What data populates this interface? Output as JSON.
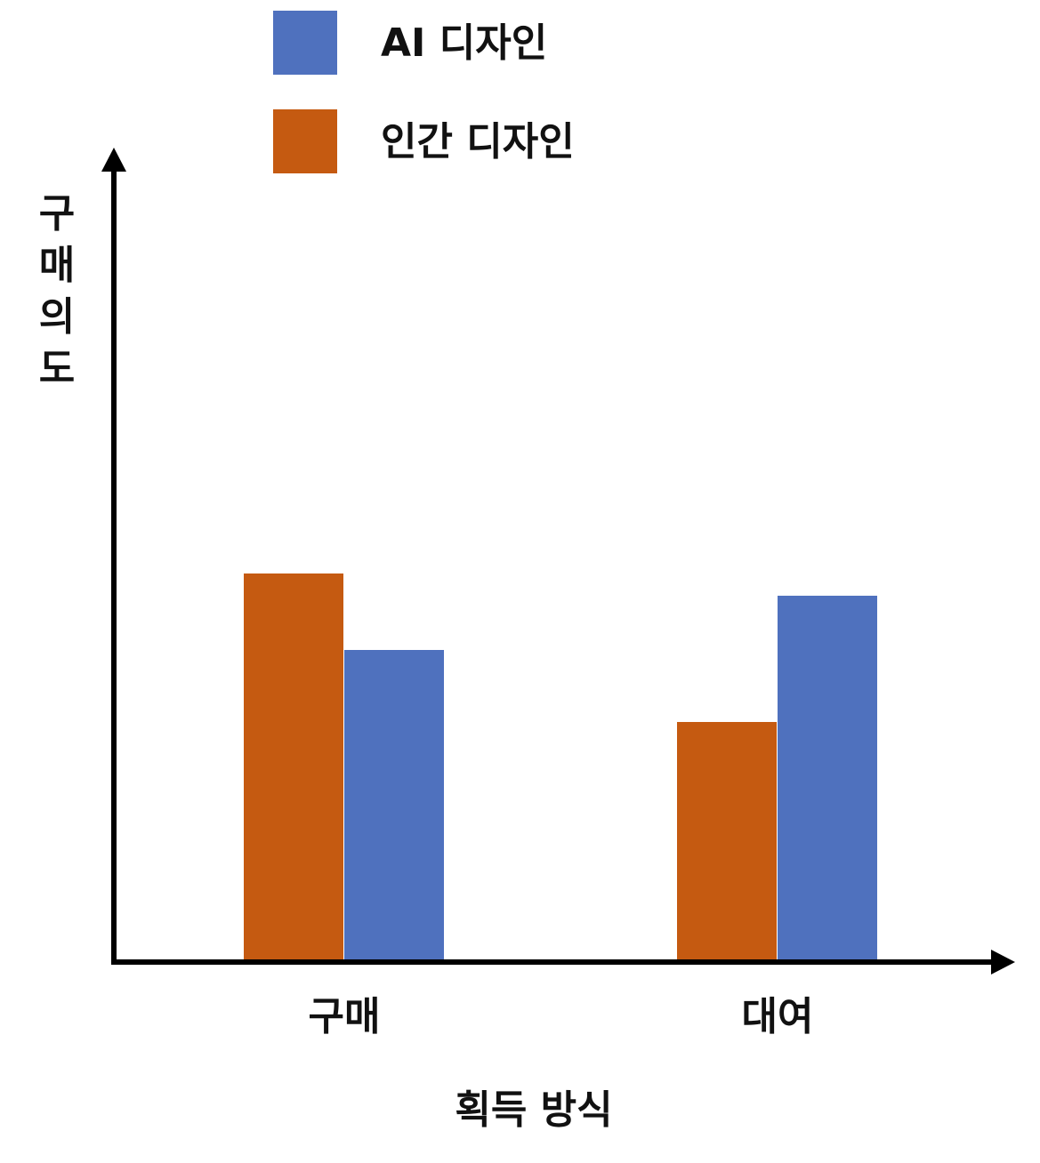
{
  "chart_data": {
    "type": "bar",
    "title": "",
    "xlabel": "획득 방식",
    "ylabel": "구매의도",
    "categories": [
      "구매",
      "대여"
    ],
    "series": [
      {
        "name": "인간 디자인",
        "color": "#C55A11",
        "values": [
          435,
          268
        ]
      },
      {
        "name": "AI 디자인",
        "color": "#4F71BE",
        "values": [
          349,
          410
        ]
      }
    ],
    "ylim": [
      0,
      900
    ],
    "grid": false,
    "legend_position": "top",
    "legend_order": [
      "AI 디자인",
      "인간 디자인"
    ],
    "y_ticks_shown": false
  }
}
